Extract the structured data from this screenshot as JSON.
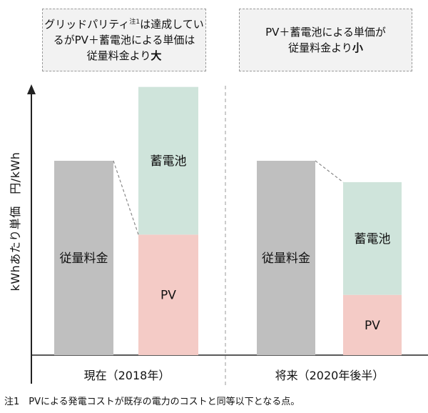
{
  "notes": {
    "left": {
      "line1_pre": "グリッドパリティ",
      "sup": "注1",
      "line1_post": "は達成してい",
      "line2": "るがPV＋蓄電池による単価は",
      "line3_pre": "従量料金より",
      "line3_bold": "大"
    },
    "right": {
      "line1": "PV＋蓄電池による単価が",
      "line2_pre": "従量料金より",
      "line2_bold": "小"
    }
  },
  "footnote": "注1　PVによる発電コストが既存の電力のコストと同等以下となる点。",
  "chart_data": {
    "type": "bar",
    "title": "",
    "ylabel": "kWhあたり単価　円/kWh",
    "categories": [
      "現在（2018年）",
      "将来（2020年後半）"
    ],
    "bars": [
      {
        "group": 0,
        "stack": [
          {
            "label": "従量料金",
            "value": 100,
            "color": "#bfbfbf"
          }
        ]
      },
      {
        "group": 0,
        "stack": [
          {
            "label": "PV",
            "value": 62,
            "color": "#f4cbc6"
          },
          {
            "label": "蓄電池",
            "value": 76,
            "color": "#cfe4db"
          }
        ]
      },
      {
        "group": 1,
        "stack": [
          {
            "label": "従量料金",
            "value": 100,
            "color": "#bfbfbf"
          }
        ]
      },
      {
        "group": 1,
        "stack": [
          {
            "label": "PV",
            "value": 31,
            "color": "#f4cbc6"
          },
          {
            "label": "蓄電池",
            "value": 58,
            "color": "#cfe4db"
          }
        ]
      }
    ],
    "ylim": [
      0,
      140
    ],
    "grid": false,
    "legend": "none"
  }
}
